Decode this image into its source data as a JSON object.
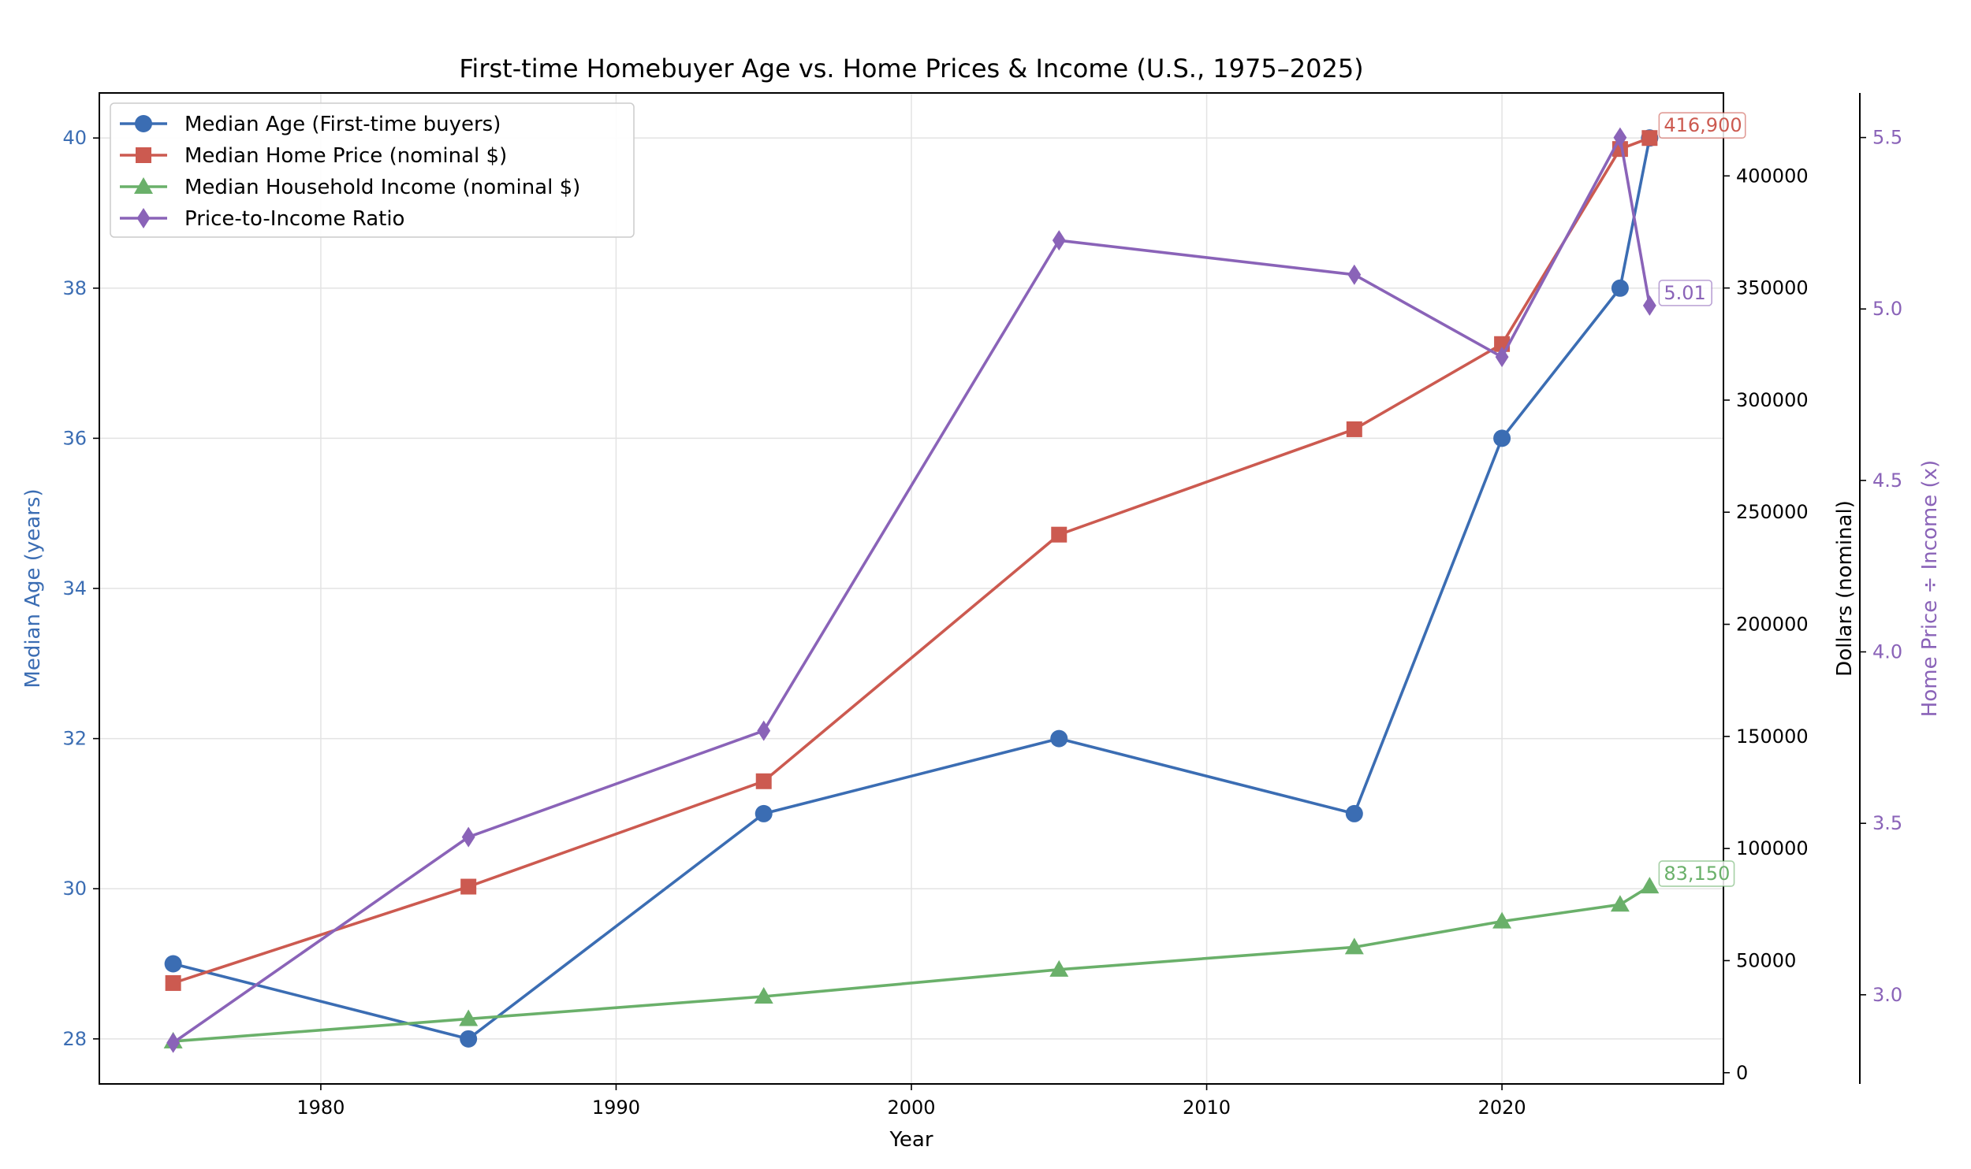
{
  "chart_data": {
    "type": "line",
    "title": "First-time Homebuyer Age vs. Home Prices & Income (U.S., 1975–2025)",
    "xlabel": "Year",
    "ylabel_left": "Median Age (years)",
    "ylabel_right": "Dollars (nominal)",
    "ylabel_right2": "Home Price ÷ Income (x)",
    "x": [
      1975,
      1985,
      1995,
      2005,
      2015,
      2020,
      2024,
      2025
    ],
    "xlim": [
      1972.5,
      2027.5
    ],
    "xticks": [
      1980,
      1990,
      2000,
      2010,
      2020
    ],
    "axes": {
      "left": {
        "ylim": [
          27.4,
          40.6
        ],
        "ticks": [
          28,
          30,
          32,
          34,
          36,
          38,
          40
        ],
        "color": "#3b6db3"
      },
      "right": {
        "ylim": [
          -5000,
          437000
        ],
        "ticks": [
          0,
          50000,
          100000,
          150000,
          200000,
          250000,
          300000,
          350000,
          400000
        ],
        "color": "#000000"
      },
      "right2": {
        "ylim": [
          2.74,
          5.63
        ],
        "ticks": [
          3.0,
          3.5,
          4.0,
          4.5,
          5.0,
          5.5
        ],
        "tick_labels": [
          "3.0",
          "3.5",
          "4.0",
          "4.5",
          "5.0",
          "5.5"
        ],
        "color": "#8a63b8"
      }
    },
    "series": [
      {
        "name": "Median Age (First-time buyers)",
        "axis": "left",
        "color": "#3b6db3",
        "marker": "circle",
        "values": [
          29,
          28,
          31,
          32,
          31,
          36,
          38,
          40
        ]
      },
      {
        "name": "Median Home Price (nominal $)",
        "axis": "right",
        "color": "#cc5a50",
        "marker": "square",
        "values": [
          40000,
          83000,
          130000,
          240000,
          287000,
          325000,
          412000,
          416900
        ]
      },
      {
        "name": "Median Household Income (nominal $)",
        "axis": "right",
        "color": "#6ab06a",
        "marker": "triangle",
        "values": [
          14000,
          24000,
          34000,
          46000,
          56000,
          67500,
          75000,
          83150
        ]
      },
      {
        "name": "Price-to-Income Ratio",
        "axis": "right2",
        "color": "#8a63b8",
        "marker": "diamond",
        "values": [
          2.86,
          3.46,
          3.77,
          5.2,
          5.1,
          4.86,
          5.5,
          5.01
        ]
      }
    ],
    "annotations": [
      {
        "text": "416,900",
        "series": 1,
        "color": "#cc5a50"
      },
      {
        "text": "83,150",
        "series": 2,
        "color": "#6ab06a"
      },
      {
        "text": "5.01",
        "series": 3,
        "color": "#8a63b8"
      }
    ],
    "legend": "top-left",
    "grid": true
  }
}
